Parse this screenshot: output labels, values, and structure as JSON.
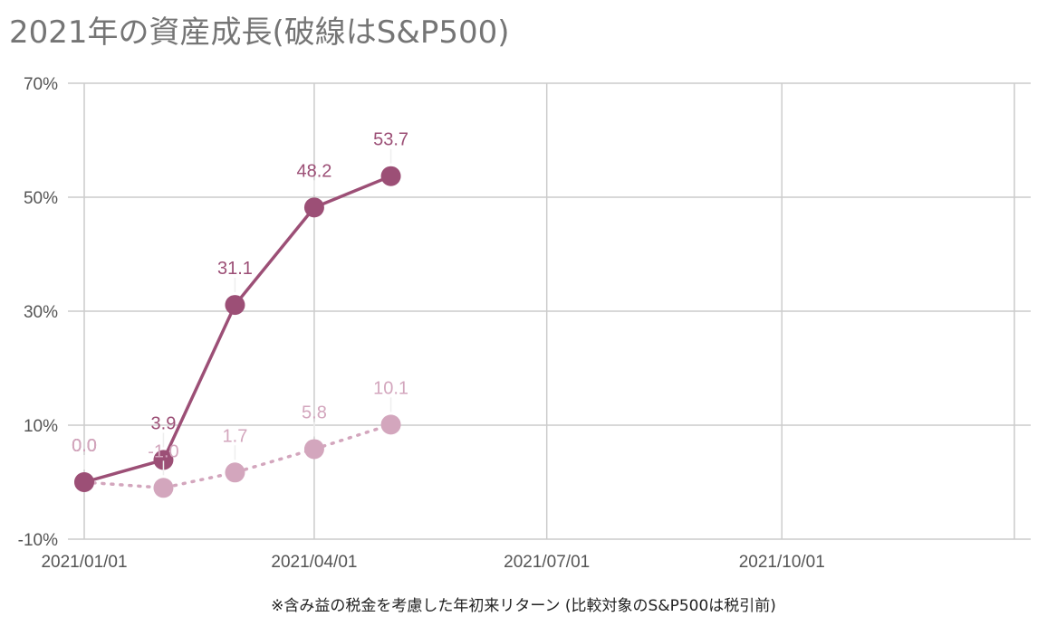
{
  "title": "2021年の資産成長(破線はS&P500)",
  "footnote": "※含み益の税金を考慮した年初来リターン (比較対象のS&P500は税引前)",
  "colors": {
    "portfolio": "#9c4f76",
    "sp500": "#d3a6bd",
    "grid": "#cccccc",
    "text": "#555555"
  },
  "chart_data": {
    "type": "line",
    "title": "2021年の資産成長(破線はS&P500)",
    "xlabel": "",
    "ylabel": "",
    "x_type": "date",
    "xlim": [
      "2021-01-01",
      "2021-12-31"
    ],
    "ylim": [
      -10,
      70
    ],
    "y_ticks": [
      -10,
      10,
      30,
      50,
      70
    ],
    "y_tick_labels": [
      "-10%",
      "10%",
      "30%",
      "50%",
      "70%"
    ],
    "x_ticks": [
      "2021-01-01",
      "2021-04-01",
      "2021-07-01",
      "2021-10-01"
    ],
    "x_tick_labels": [
      "2021/01/01",
      "2021/04/01",
      "2021/07/01",
      "2021/10/01"
    ],
    "grid": true,
    "legend": "none",
    "series": [
      {
        "style": "solid",
        "x": [
          "2021-01-01",
          "2021-02-01",
          "2021-03-01",
          "2021-04-01",
          "2021-05-01"
        ],
        "values": [
          0.0,
          3.9,
          31.1,
          48.2,
          53.7
        ],
        "labels": [
          "0.0",
          "3.9",
          "31.1",
          "48.2",
          "53.7"
        ]
      },
      {
        "style": "dotted",
        "x": [
          "2021-01-01",
          "2021-02-01",
          "2021-03-01",
          "2021-04-01",
          "2021-05-01"
        ],
        "values": [
          0.0,
          -1.0,
          1.7,
          5.8,
          10.1
        ],
        "labels": [
          "0.0",
          "-1.0",
          "1.7",
          "5.8",
          "10.1"
        ]
      }
    ]
  }
}
